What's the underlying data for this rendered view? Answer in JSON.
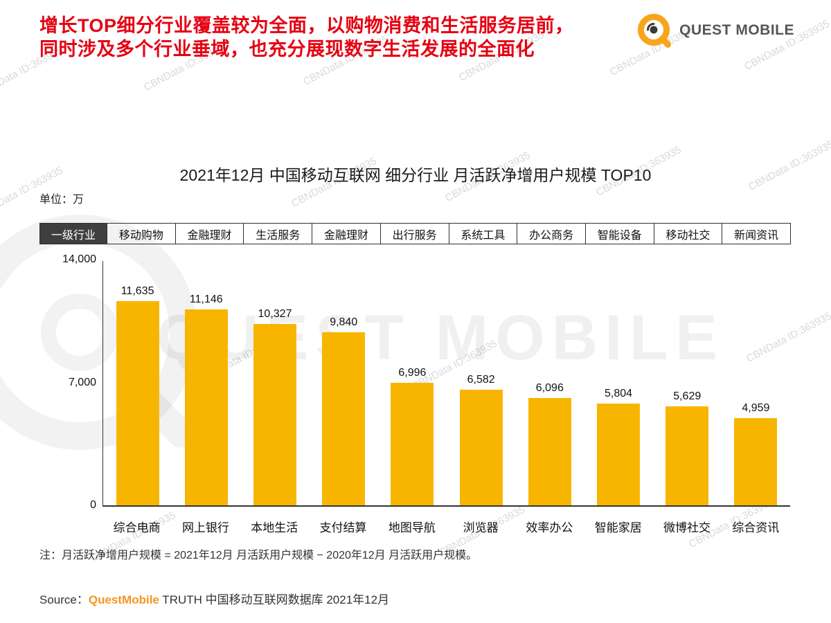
{
  "header": {
    "headline_line1": "增长TOP细分行业覆盖较为全面，以购物消费和生活服务居前，",
    "headline_line2": "同时涉及多个行业垂域，也充分展现数字生活发展的全面化",
    "brand": "QUEST MOBILE"
  },
  "watermark": {
    "small_text": "CBNData ID:363935",
    "big_text": "QUEST MOBILE"
  },
  "chart": {
    "title": "2021年12月 中国移动互联网 细分行业 月活跃净增用户规模 TOP10",
    "unit_label": "单位：万",
    "category_header_first": "一级行业",
    "category_header_items": [
      "移动购物",
      "金融理财",
      "生活服务",
      "金融理财",
      "出行服务",
      "系统工具",
      "办公商务",
      "智能设备",
      "移动社交",
      "新闻资讯"
    ]
  },
  "chart_data": {
    "type": "bar",
    "title": "2021年12月 中国移动互联网 细分行业 月活跃净增用户规模 TOP10",
    "unit": "万",
    "categories": [
      "综合电商",
      "网上银行",
      "本地生活",
      "支付结算",
      "地图导航",
      "浏览器",
      "效率办公",
      "智能家居",
      "微博社交",
      "综合资讯"
    ],
    "values": [
      11635,
      11146,
      10327,
      9840,
      6996,
      6582,
      6096,
      5804,
      5629,
      4959
    ],
    "value_labels": [
      "11,635",
      "11,146",
      "10,327",
      "9,840",
      "6,996",
      "6,582",
      "6,096",
      "5,804",
      "5,629",
      "4,959"
    ],
    "ylim": [
      0,
      14000
    ],
    "yticks": [
      0,
      7000,
      14000
    ],
    "ytick_labels": [
      "0",
      "7,000",
      "14,000"
    ],
    "bar_color": "#F8B500",
    "grid": false,
    "legend": "none"
  },
  "footer": {
    "note": "注：月活跃净增用户规模 = 2021年12月 月活跃用户规模 − 2020年12月 月活跃用户规模。",
    "source_prefix": "Source：",
    "source_brand": "QuestMobile",
    "source_suffix": " TRUTH 中国移动互联网数据库 2021年12月"
  },
  "colors": {
    "headline_red": "#E60012",
    "brand_orange": "#F9A51A",
    "brand_text_gray": "#54565A",
    "bar_yellow": "#F8B500",
    "source_orange": "#F7941D"
  }
}
